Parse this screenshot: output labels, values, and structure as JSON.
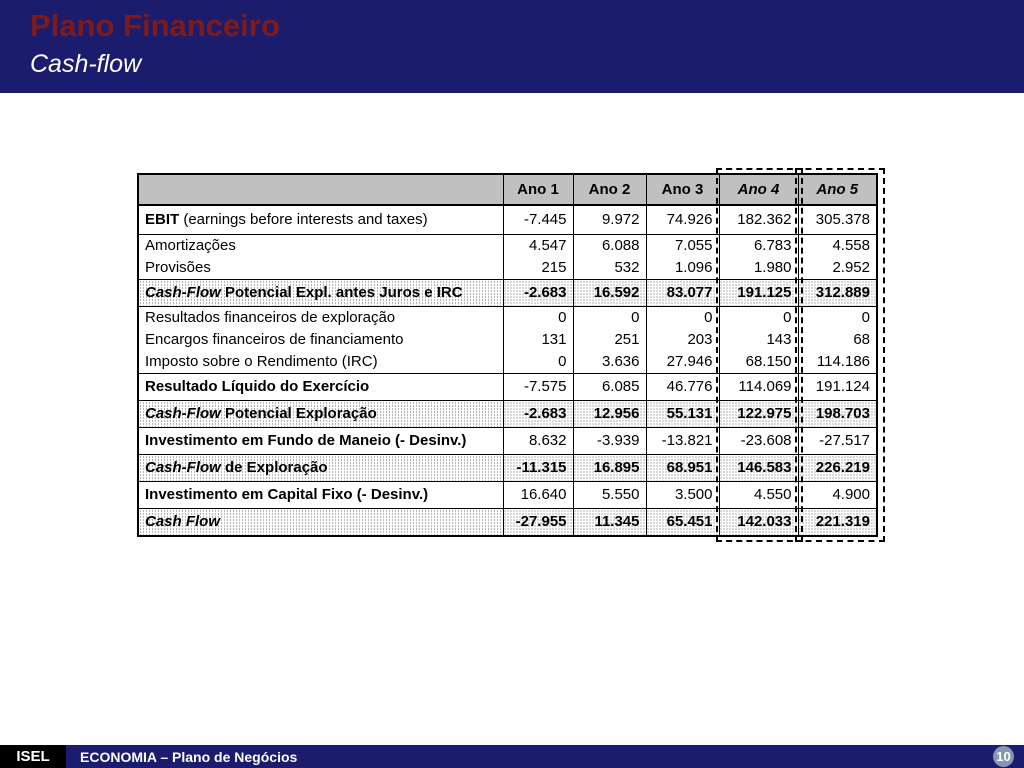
{
  "header": {
    "title": "Plano Financeiro",
    "subtitle": "Cash-flow"
  },
  "table": {
    "columns": [
      "Ano 1",
      "Ano 2",
      "Ano 3",
      "Ano 4",
      "Ano 5"
    ],
    "rows": [
      {
        "label_prefix": "EBIT",
        "label": " (earnings before interests and taxes)",
        "values": [
          "-7.445",
          "9.972",
          "74.926",
          "182.362",
          "305.378"
        ]
      },
      {
        "label_prefix": "",
        "label": "Amortizações",
        "values": [
          "4.547",
          "6.088",
          "7.055",
          "6.783",
          "4.558"
        ]
      },
      {
        "label_prefix": "",
        "label": "Provisões",
        "values": [
          "215",
          "532",
          "1.096",
          "1.980",
          "2.952"
        ]
      },
      {
        "label_prefix": "Cash-Flow",
        "label": " Potencial Expl. antes Juros e IRC",
        "values": [
          "-2.683",
          "16.592",
          "83.077",
          "191.125",
          "312.889"
        ]
      },
      {
        "label_prefix": "",
        "label": "Resultados financeiros de exploração",
        "values": [
          "0",
          "0",
          "0",
          "0",
          "0"
        ]
      },
      {
        "label_prefix": "",
        "label": "Encargos financeiros de financiamento",
        "values": [
          "131",
          "251",
          "203",
          "143",
          "68"
        ]
      },
      {
        "label_prefix": "",
        "label": "Imposto sobre o Rendimento (IRC)",
        "values": [
          "0",
          "3.636",
          "27.946",
          "68.150",
          "114.186"
        ]
      },
      {
        "label_prefix": "",
        "label": "Resultado Líquido do Exercício",
        "values": [
          "-7.575",
          "6.085",
          "46.776",
          "114.069",
          "191.124"
        ]
      },
      {
        "label_prefix": "Cash-Flow",
        "label": " Potencial Exploração",
        "values": [
          "-2.683",
          "12.956",
          "55.131",
          "122.975",
          "198.703"
        ]
      },
      {
        "label_prefix": "",
        "label": "Investimento em Fundo de Maneio (- Desinv.)",
        "values": [
          "8.632",
          "-3.939",
          "-13.821",
          "-23.608",
          "-27.517"
        ]
      },
      {
        "label_prefix": "Cash-Flow",
        "label": " de Exploração",
        "values": [
          "-11.315",
          "16.895",
          "68.951",
          "146.583",
          "226.219"
        ]
      },
      {
        "label_prefix": "",
        "label": "Investimento em Capital Fixo (- Desinv.)",
        "values": [
          "16.640",
          "5.550",
          "3.500",
          "4.550",
          "4.900"
        ]
      },
      {
        "label_prefix": "Cash Flow",
        "label": "",
        "values": [
          "-27.955",
          "11.345",
          "65.451",
          "142.033",
          "221.319"
        ]
      }
    ]
  },
  "footer": {
    "logo": "ISEL",
    "text": "ECONOMIA – Plano de Negócios",
    "page": "10"
  }
}
